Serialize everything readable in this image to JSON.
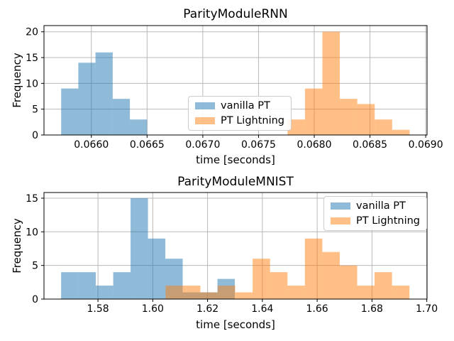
{
  "figure": {
    "background": "#ffffff",
    "grid_color": "#b8b8b8",
    "spine_color": "#000000",
    "text_color": "#000000"
  },
  "chart_data": [
    {
      "type": "bar",
      "subtype": "histogram",
      "title": "ParityModuleRNN",
      "xlabel": "time [seconds]",
      "ylabel": "Frequency",
      "xlim": [
        0.065575,
        0.069012
      ],
      "ylim": [
        0,
        21.2
      ],
      "grid": true,
      "xticks": {
        "values": [
          0.066,
          0.0665,
          0.067,
          0.0675,
          0.068,
          0.0685,
          0.069
        ],
        "labels": [
          "0.0660",
          "0.0665",
          "0.0670",
          "0.0675",
          "0.0680",
          "0.0685",
          "0.0690"
        ]
      },
      "yticks": {
        "values": [
          0,
          5,
          10,
          15,
          20
        ],
        "labels": [
          "0",
          "5",
          "10",
          "15",
          "20"
        ]
      },
      "legend": {
        "location": "center",
        "entries": [
          {
            "label": "vanilla PT"
          },
          {
            "label": "PT Lightning"
          }
        ]
      },
      "series": [
        {
          "name": "vanilla PT",
          "color": "#1f77b4",
          "alpha": 0.5,
          "bin_start": 0.065729,
          "bin_width": 0.0001542,
          "counts": [
            9,
            14,
            16,
            7,
            3
          ]
        },
        {
          "name": "PT Lightning",
          "color": "#ff7f0e",
          "alpha": 0.5,
          "bin_start": 0.06776,
          "bin_width": 0.0001565,
          "counts": [
            3,
            9,
            20,
            7,
            6,
            3,
            1
          ]
        }
      ]
    },
    {
      "type": "bar",
      "subtype": "histogram",
      "title": "ParityModuleMNIST",
      "xlabel": "time [seconds]",
      "ylabel": "Frequency",
      "xlim": [
        1.5603,
        1.7001
      ],
      "ylim": [
        0,
        15.84
      ],
      "grid": true,
      "xticks": {
        "values": [
          1.58,
          1.6,
          1.62,
          1.64,
          1.66,
          1.68,
          1.7
        ],
        "labels": [
          "1.58",
          "1.60",
          "1.62",
          "1.64",
          "1.66",
          "1.68",
          "1.70"
        ]
      },
      "yticks": {
        "values": [
          0,
          5,
          10,
          15
        ],
        "labels": [
          "0",
          "5",
          "10",
          "15"
        ]
      },
      "legend": {
        "location": "upper right",
        "entries": [
          {
            "label": "vanilla PT"
          },
          {
            "label": "PT Lightning"
          }
        ]
      },
      "series": [
        {
          "name": "vanilla PT",
          "color": "#1f77b4",
          "alpha": 0.5,
          "bin_start": 1.56655,
          "bin_width": 0.006339,
          "counts": [
            4,
            4,
            2,
            4,
            15,
            9,
            6,
            1,
            1,
            3
          ]
        },
        {
          "name": "PT Lightning",
          "color": "#ff7f0e",
          "alpha": 0.5,
          "bin_start": 1.60466,
          "bin_width": 0.006358,
          "counts": [
            2,
            2,
            1,
            2,
            1,
            6,
            4,
            2,
            9,
            7,
            5,
            2,
            4,
            2
          ]
        }
      ]
    }
  ]
}
